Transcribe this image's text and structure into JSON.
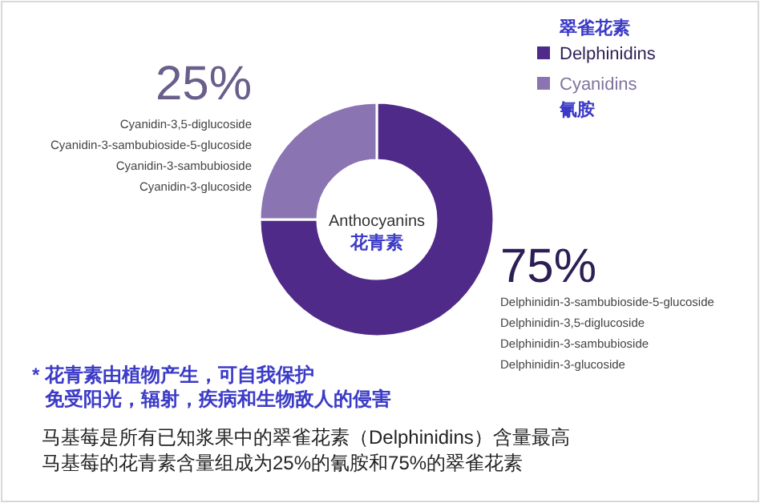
{
  "chart_data": {
    "type": "donut",
    "categories": [
      "Delphinidins",
      "Cyanidins"
    ],
    "values": [
      75,
      25
    ],
    "value_labels": [
      "75%",
      "25%"
    ],
    "colors": [
      "#4f2a88",
      "#8b74b2"
    ],
    "legend": "top right",
    "annotations": [
      "翠雀花素",
      "氰胺",
      "Cyanidin-3,5-diglucoside",
      "Cyanidin-3-sambubioside-5-glucoside",
      "Cyanidin-3-sambubioside",
      "Cyanidin-3-glucoside",
      "Delphinidin-3-sambubioside-5-glucoside",
      "Delphinidin-3,5-diglucoside",
      "Delphinidin-3-sambubioside",
      "Delphinidin-3-glucoside",
      "Anthocyanins",
      "花青素",
      "* 花青素由植物产生，可自我保护",
      "免受阳光，辐射，疾病和生物敌人的侵害",
      "马基莓是所有已知浆果中的翠雀花素（Delphinidins）含量最高",
      "马基莓的花青素含量组成为25%的氰胺和75%的翠雀花素"
    ]
  }
}
